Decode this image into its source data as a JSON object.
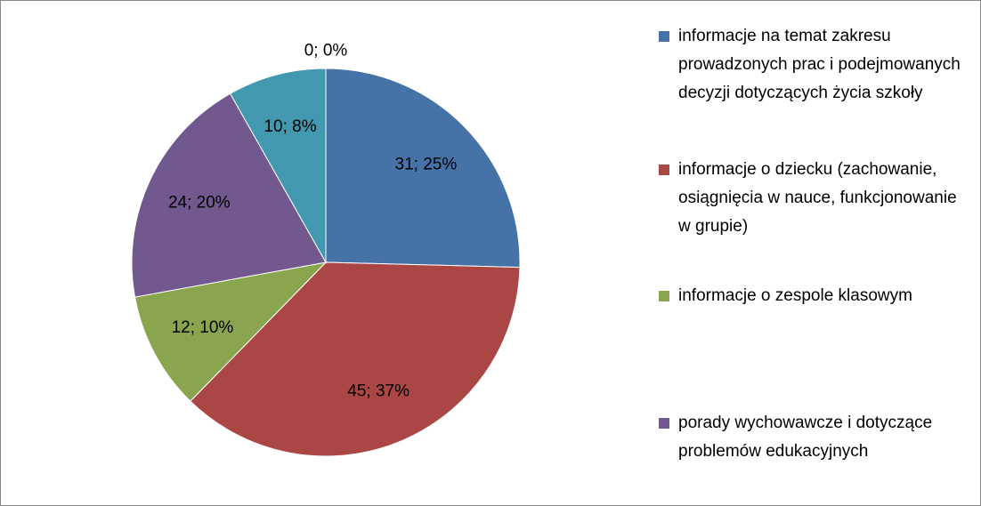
{
  "chart_data": {
    "type": "pie",
    "categories": [
      "informacje na temat zakresu prowadzonych prac i podejmowanych decyzji dotyczących życia szkoły",
      "informacje o dziecku (zachowanie, osiągnięcia w nauce, funkcjonowanie w grupie)",
      "informacje o zespole klasowym",
      "porady wychowawcze i dotyczące problemów edukacyjnych",
      null,
      null
    ],
    "values": [
      31,
      45,
      12,
      24,
      10,
      0
    ],
    "value_labels": [
      "31; 25%",
      "45; 37%",
      "12; 10%",
      "24; 20%",
      "10; 8%",
      "0; 0%"
    ],
    "colors": [
      "#4572a7",
      "#aa4643",
      "#89a54e",
      "#71588f",
      "#4198af",
      "#db843d"
    ],
    "legend": "right"
  }
}
